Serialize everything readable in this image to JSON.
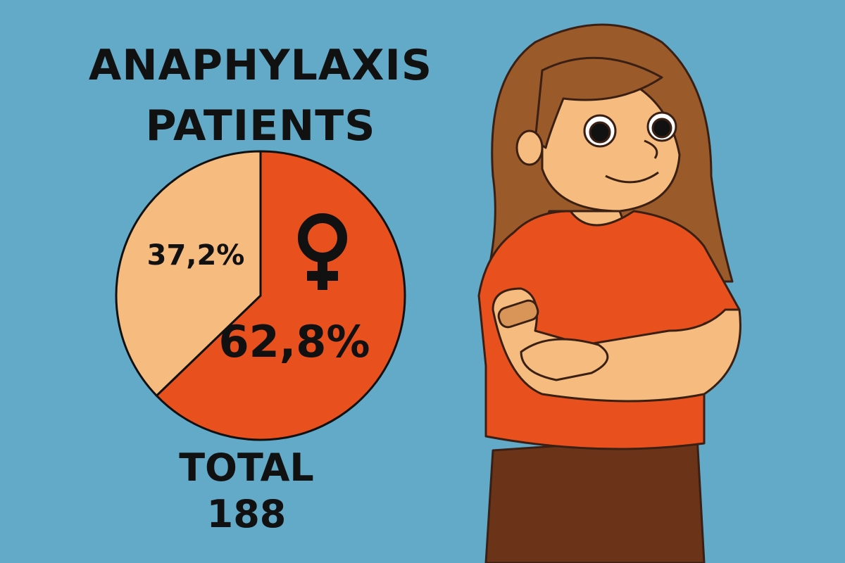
{
  "chart_data": {
    "type": "pie",
    "title": "ANAPHYLAXIS PATIENTS",
    "categories": [
      null,
      null
    ],
    "values": [
      62.8,
      37.2
    ],
    "value_labels": [
      "62,8%",
      "37,2%"
    ],
    "colors": [
      "#e8501e",
      "#f6bb7f"
    ],
    "total_label": "TOTAL",
    "total": 188
  }
}
